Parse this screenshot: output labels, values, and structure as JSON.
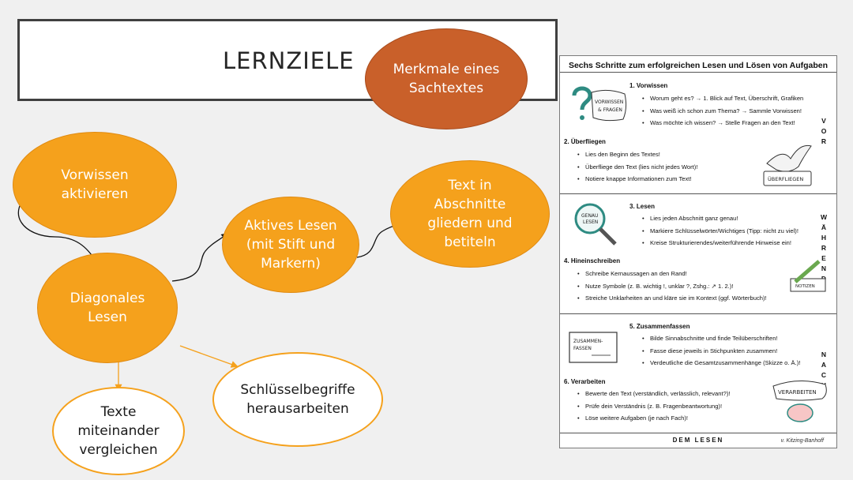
{
  "title": "LERNZIELE",
  "bubbles": {
    "merkmale": "Merkmale eines\nSachtextes",
    "vorwissen": "Vorwissen\naktivieren",
    "diagonales": "Diagonales\nLesen",
    "aktives": "Aktives Lesen\n(mit Stift und\nMarkern)",
    "gliedern": "Text in\nAbschnitte\ngliedern und\nbetiteln",
    "schluessel": "Schlüsselbegriffe\nheraus­arbeiten",
    "vergleichen": "Texte\nmiteinander\nvergleichen"
  },
  "colors": {
    "orange": "#f5a11c",
    "brown": "#c9602a"
  },
  "panel": {
    "title": "Sechs Schritte zum erfolgreichen Lesen und Lösen von Aufgaben",
    "phases": {
      "vor": "V\nO\nR",
      "waehrend": "W\nÄ\nH\nR\nE\nN\nD",
      "nach": "N\nA\nC\nH"
    },
    "steps": [
      {
        "head": "1.  Vorwissen",
        "items": [
          "Worum geht es? → 1. Blick auf Text, Überschrift, Grafiken",
          "Was weiß ich schon zum Thema? → Sammle Vorwissen!",
          "Was möchte ich wissen? → Stelle Fragen an den Text!"
        ]
      },
      {
        "head": "2.  Überfliegen",
        "items": [
          "Lies den Beginn des Textes!",
          "Überfliege den Text (lies nicht jedes Wort)!",
          "Notiere knappe Informationen zum Text!"
        ]
      },
      {
        "head": "3.  Lesen",
        "items": [
          "Lies jeden Abschnitt ganz genau!",
          "Markiere Schlüsselwörter/Wichtiges (Tipp: nicht zu viel)!",
          "Kreise Strukturierendes/weiterführende Hinweise ein!"
        ]
      },
      {
        "head": "4.  Hineinschreiben",
        "items": [
          "Schreibe Kernaussagen an den Rand!",
          "Nutze Symbole (z. B. wichtig !, unklar ?, Zshg.: ↗ 1. 2.)!",
          "Streiche Unklarheiten an und kläre sie im Kontext (ggf. Wörterbuch)!"
        ]
      },
      {
        "head": "5.  Zusammenfassen",
        "items": [
          "Bilde Sinnabschnitte und finde Teilüberschriften!",
          "Fasse diese jeweils in Stichpunkten zusammen!",
          "Verdeutliche die Gesamtzusammenhänge (Skizze o. Ä.)!"
        ]
      },
      {
        "head": "6.  Verarbeiten",
        "items": [
          "Bewerte den Text (verständlich, verlässlich, relevant?)!",
          "Prüfe dein Verständnis (z. B. Fragenbeantwortung)!",
          "Löse weitere Aufgaben (je nach Fach)!"
        ]
      }
    ],
    "sketch_labels": {
      "vorwissen": "VORWISSEN\n& FRAGEN",
      "ueberfliegen": "ÜBERFLIEGEN",
      "genau": "GENAU\nLESEN",
      "notizen": "NOTIZEN",
      "zusammen": "ZUSAMMEN-\nFASSEN",
      "verarbeiten": "VERARBEITEN"
    },
    "footer": "DEM LESEN",
    "signature": "v. Kitzing-Banhoff"
  }
}
